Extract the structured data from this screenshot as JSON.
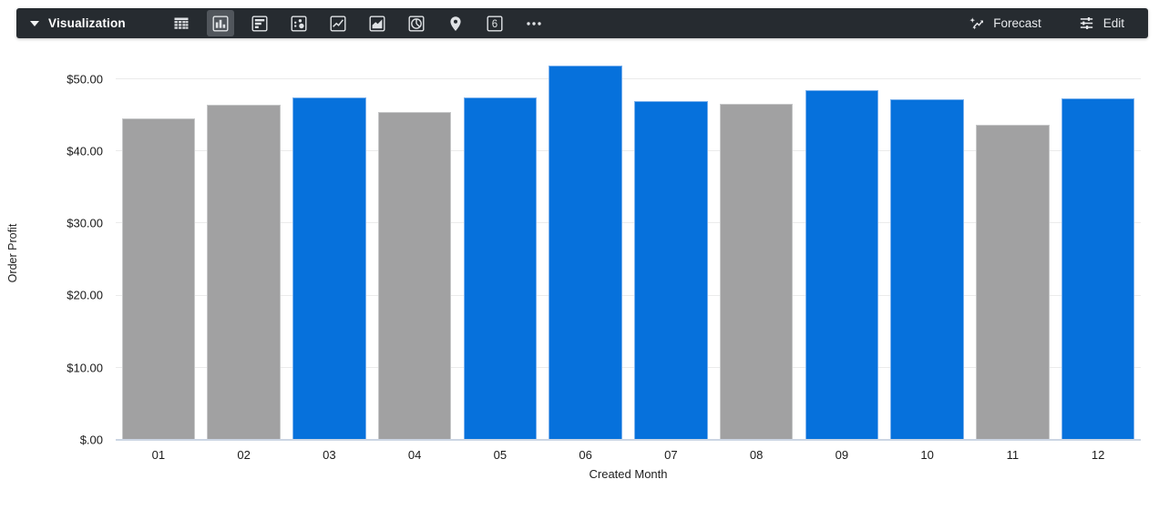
{
  "toolbar": {
    "title": "Visualization",
    "forecast_label": "Forecast",
    "edit_label": "Edit",
    "single_value_glyph": "6",
    "background": "#262b30",
    "selected_icon_background": "#51565c",
    "icons": [
      {
        "name": "table-chart-icon",
        "selected": false
      },
      {
        "name": "column-chart-icon",
        "selected": true
      },
      {
        "name": "bar-chart-icon",
        "selected": false
      },
      {
        "name": "scatter-chart-icon",
        "selected": false
      },
      {
        "name": "line-chart-icon",
        "selected": false
      },
      {
        "name": "area-chart-icon",
        "selected": false
      },
      {
        "name": "pie-chart-icon",
        "selected": false
      },
      {
        "name": "map-chart-icon",
        "selected": false
      },
      {
        "name": "single-value-icon",
        "selected": false
      },
      {
        "name": "more-options-icon",
        "selected": false
      }
    ]
  },
  "chart_data": {
    "type": "bar",
    "title": "",
    "xlabel": "Created Month",
    "ylabel": "Order Profit",
    "categories": [
      "01",
      "02",
      "03",
      "04",
      "05",
      "06",
      "07",
      "08",
      "09",
      "10",
      "11",
      "12"
    ],
    "values": [
      44.5,
      46.4,
      47.5,
      45.4,
      47.5,
      51.9,
      47.0,
      46.6,
      48.5,
      47.2,
      43.6,
      47.3
    ],
    "bar_colors": [
      "gray",
      "gray",
      "blue",
      "gray",
      "blue",
      "blue",
      "blue",
      "gray",
      "blue",
      "blue",
      "gray",
      "blue"
    ],
    "palette": {
      "blue": "#0671dc",
      "gray": "#a1a1a2"
    },
    "palette_border": {
      "blue": "#7ab0ec",
      "gray": "#c6c7c8"
    },
    "ylim": [
      0,
      53.5
    ],
    "yticks": [
      {
        "v": 0,
        "label": "$.00"
      },
      {
        "v": 10,
        "label": "$10.00"
      },
      {
        "v": 20,
        "label": "$20.00"
      },
      {
        "v": 30,
        "label": "$30.00"
      },
      {
        "v": 40,
        "label": "$40.00"
      },
      {
        "v": 50,
        "label": "$50.00"
      }
    ],
    "grid": true,
    "legend": "none"
  }
}
